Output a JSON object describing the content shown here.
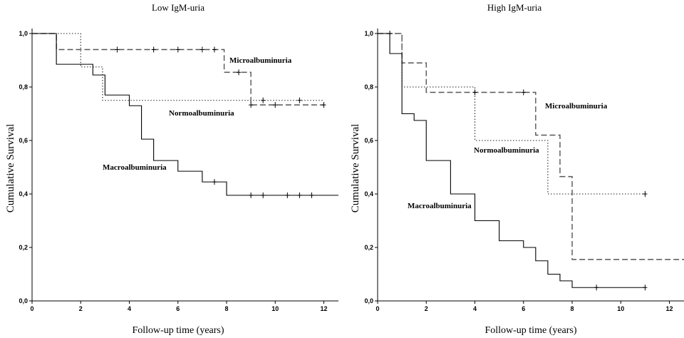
{
  "chart_data": [
    {
      "type": "line",
      "subtype": "kaplan-meier-step",
      "title": "Low IgM-uria",
      "xlabel": "Follow-up time (years)",
      "ylabel": "Cumulative Survival",
      "xlim": [
        0,
        12.6
      ],
      "ylim": [
        0,
        1.0
      ],
      "xticks": [
        "0",
        "2",
        "4",
        "6",
        "8",
        "10",
        "12"
      ],
      "yticks": [
        "0,0",
        "0,2",
        "0,4",
        "0,6",
        "0,8",
        "1,0"
      ],
      "grid": false,
      "series": [
        {
          "name": "Normoalbuminuria",
          "style": "dotted",
          "steps": [
            [
              0,
              1.0
            ],
            [
              2.0,
              0.875
            ],
            [
              2.9,
              0.75
            ],
            [
              12.0,
              0.75
            ]
          ],
          "censored": [
            [
              9.5,
              0.75
            ],
            [
              11.0,
              0.75
            ]
          ]
        },
        {
          "name": "Microalbuminuria",
          "style": "dashed",
          "steps": [
            [
              0,
              1.0
            ],
            [
              1.0,
              0.94
            ],
            [
              7.9,
              0.855
            ],
            [
              9.0,
              0.733
            ],
            [
              12.0,
              0.733
            ]
          ],
          "censored": [
            [
              3.5,
              0.94
            ],
            [
              5.0,
              0.94
            ],
            [
              6.0,
              0.94
            ],
            [
              7.0,
              0.94
            ],
            [
              7.5,
              0.94
            ],
            [
              8.5,
              0.855
            ],
            [
              9.0,
              0.733
            ],
            [
              10.0,
              0.733
            ],
            [
              12.0,
              0.733
            ]
          ]
        },
        {
          "name": "Macroalbuminuria",
          "style": "solid",
          "steps": [
            [
              0,
              1.0
            ],
            [
              1.0,
              0.885
            ],
            [
              2.5,
              0.845
            ],
            [
              3.0,
              0.77
            ],
            [
              4.0,
              0.73
            ],
            [
              4.5,
              0.605
            ],
            [
              5.0,
              0.525
            ],
            [
              6.0,
              0.485
            ],
            [
              7.0,
              0.445
            ],
            [
              8.0,
              0.395
            ],
            [
              12.6,
              0.395
            ]
          ],
          "censored": [
            [
              7.5,
              0.445
            ],
            [
              9.0,
              0.395
            ],
            [
              9.5,
              0.395
            ],
            [
              10.5,
              0.395
            ],
            [
              11.0,
              0.395
            ],
            [
              11.5,
              0.395
            ]
          ]
        }
      ],
      "annotations": [
        "Microalbuminuria",
        "Normoalbuminuria",
        "Macroalbuminuria"
      ]
    },
    {
      "type": "line",
      "subtype": "kaplan-meier-step",
      "title": "High IgM-uria",
      "xlabel": "Follow-up time (years)",
      "ylabel": "Cumulative Survival",
      "xlim": [
        0,
        12.6
      ],
      "ylim": [
        0,
        1.0
      ],
      "xticks": [
        "0",
        "2",
        "4",
        "6",
        "8",
        "10",
        "12"
      ],
      "yticks": [
        "0,0",
        "0,2",
        "0,4",
        "0,6",
        "0,8",
        "1,0"
      ],
      "grid": false,
      "series": [
        {
          "name": "Normoalbuminuria",
          "style": "dotted",
          "steps": [
            [
              0,
              1.0
            ],
            [
              1.0,
              0.8
            ],
            [
              4.0,
              0.6
            ],
            [
              7.0,
              0.4
            ],
            [
              11.0,
              0.4
            ]
          ],
          "censored": [
            [
              11.0,
              0.4
            ]
          ]
        },
        {
          "name": "Microalbuminuria",
          "style": "dashed",
          "steps": [
            [
              0,
              1.0
            ],
            [
              1.0,
              0.89
            ],
            [
              2.0,
              0.78
            ],
            [
              6.5,
              0.62
            ],
            [
              7.5,
              0.465
            ],
            [
              8.0,
              0.155
            ],
            [
              12.6,
              0.155
            ]
          ],
          "censored": [
            [
              4.0,
              0.78
            ],
            [
              6.0,
              0.78
            ]
          ]
        },
        {
          "name": "Macroalbuminuria",
          "style": "solid",
          "steps": [
            [
              0,
              1.0
            ],
            [
              0.5,
              0.925
            ],
            [
              1.0,
              0.7
            ],
            [
              1.5,
              0.675
            ],
            [
              2.0,
              0.525
            ],
            [
              3.0,
              0.4
            ],
            [
              4.0,
              0.3
            ],
            [
              5.0,
              0.225
            ],
            [
              6.0,
              0.2
            ],
            [
              6.5,
              0.15
            ],
            [
              7.0,
              0.1
            ],
            [
              7.5,
              0.075
            ],
            [
              8.0,
              0.05
            ],
            [
              11.0,
              0.05
            ]
          ],
          "censored": [
            [
              0.5,
              1.0
            ],
            [
              9.0,
              0.05
            ],
            [
              11.0,
              0.05
            ]
          ]
        }
      ],
      "annotations": [
        "Microalbuminuria",
        "Normoalbuminuria",
        "Macroalbuminuria"
      ]
    }
  ]
}
